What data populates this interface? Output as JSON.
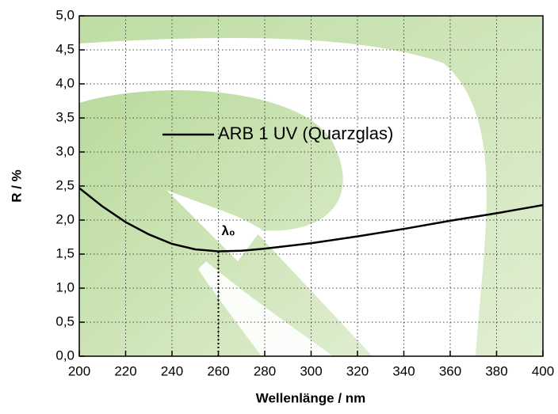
{
  "chart_data": {
    "type": "line",
    "x_label": "Wellenlänge / nm",
    "y_label": "R / %",
    "x": [
      200,
      210,
      220,
      230,
      240,
      250,
      260,
      270,
      280,
      300,
      320,
      340,
      360,
      380,
      400
    ],
    "series": [
      {
        "name": "ARB 1 UV (Quarzglas)",
        "color": "#000000",
        "values": [
          2.47,
          2.2,
          1.97,
          1.79,
          1.65,
          1.57,
          1.54,
          1.55,
          1.58,
          1.66,
          1.76,
          1.87,
          1.99,
          2.1,
          2.22
        ]
      }
    ],
    "annotation": {
      "text": "λ₀",
      "x": 260
    },
    "xlim": [
      200,
      400
    ],
    "xticks": [
      200,
      220,
      240,
      260,
      280,
      300,
      320,
      340,
      360,
      380,
      400
    ],
    "ylim": [
      0,
      5
    ],
    "yticks": [
      {
        "value": 0,
        "label": "0,0"
      },
      {
        "value": 0.5,
        "label": "0,5"
      },
      {
        "value": 1,
        "label": "1,0"
      },
      {
        "value": 1.5,
        "label": "1,5"
      },
      {
        "value": 2,
        "label": "2,0"
      },
      {
        "value": 2.5,
        "label": "2,5"
      },
      {
        "value": 3,
        "label": "3,0"
      },
      {
        "value": 3.5,
        "label": "3,5"
      },
      {
        "value": 4,
        "label": "4,0"
      },
      {
        "value": 4.5,
        "label": "4,5"
      },
      {
        "value": 5,
        "label": "5,0"
      }
    ],
    "grid": true
  }
}
